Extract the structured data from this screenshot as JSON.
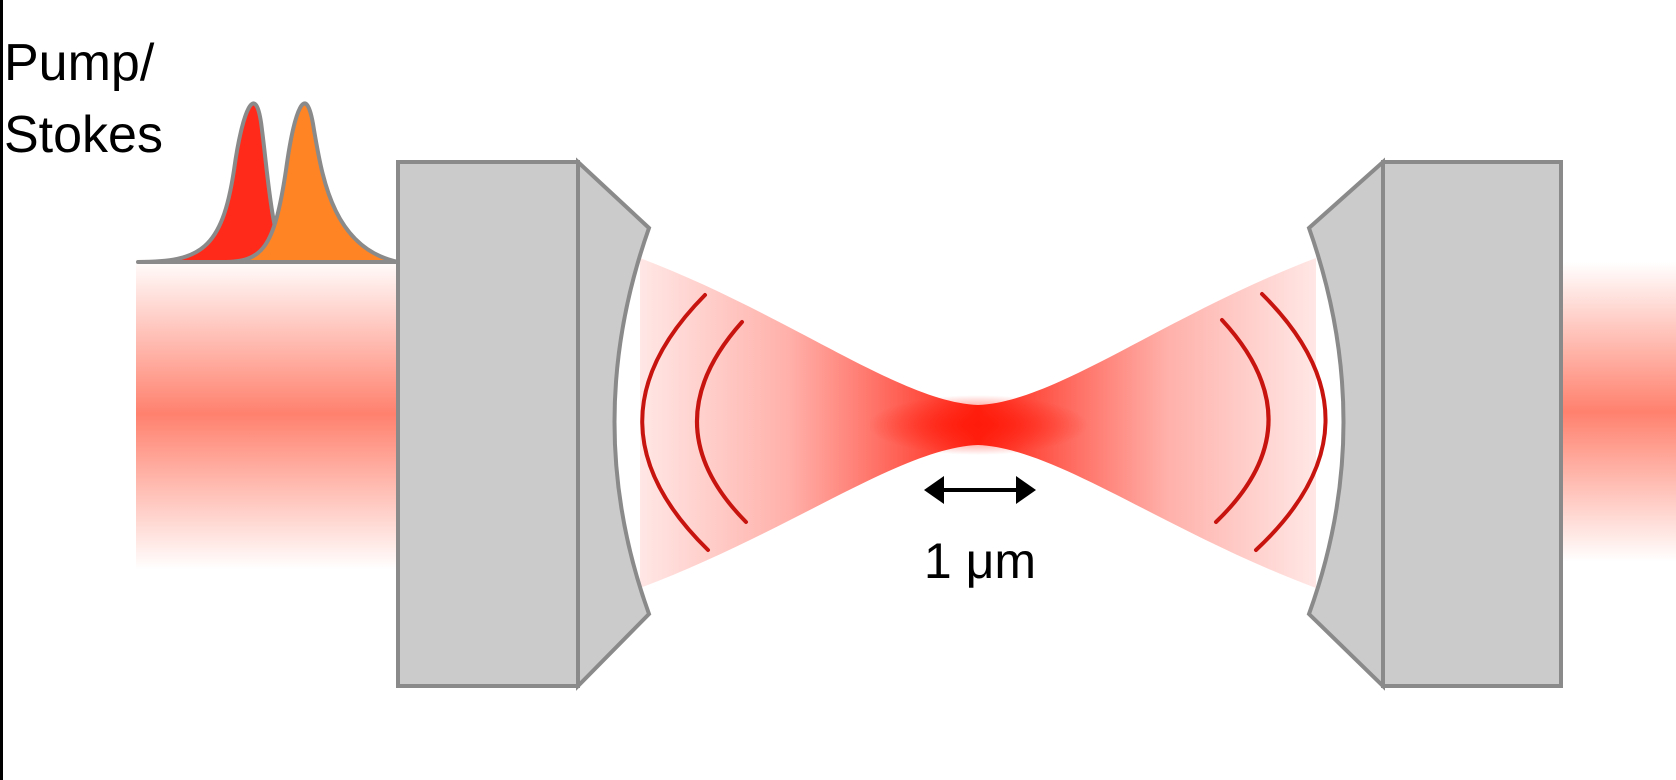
{
  "pulse_label": {
    "line1": "Pump/",
    "line2": "Stokes"
  },
  "scale_bar": {
    "label": "1 μm"
  },
  "colors": {
    "pump": "#ff2a1a",
    "stokes": "#ff8424",
    "beam": "#ff2a1a",
    "beam_glow": "#ff7a66",
    "mirror_fill": "#cbcbcb",
    "mirror_stroke": "#8a8a8a",
    "wavefront": "#c8140f"
  }
}
